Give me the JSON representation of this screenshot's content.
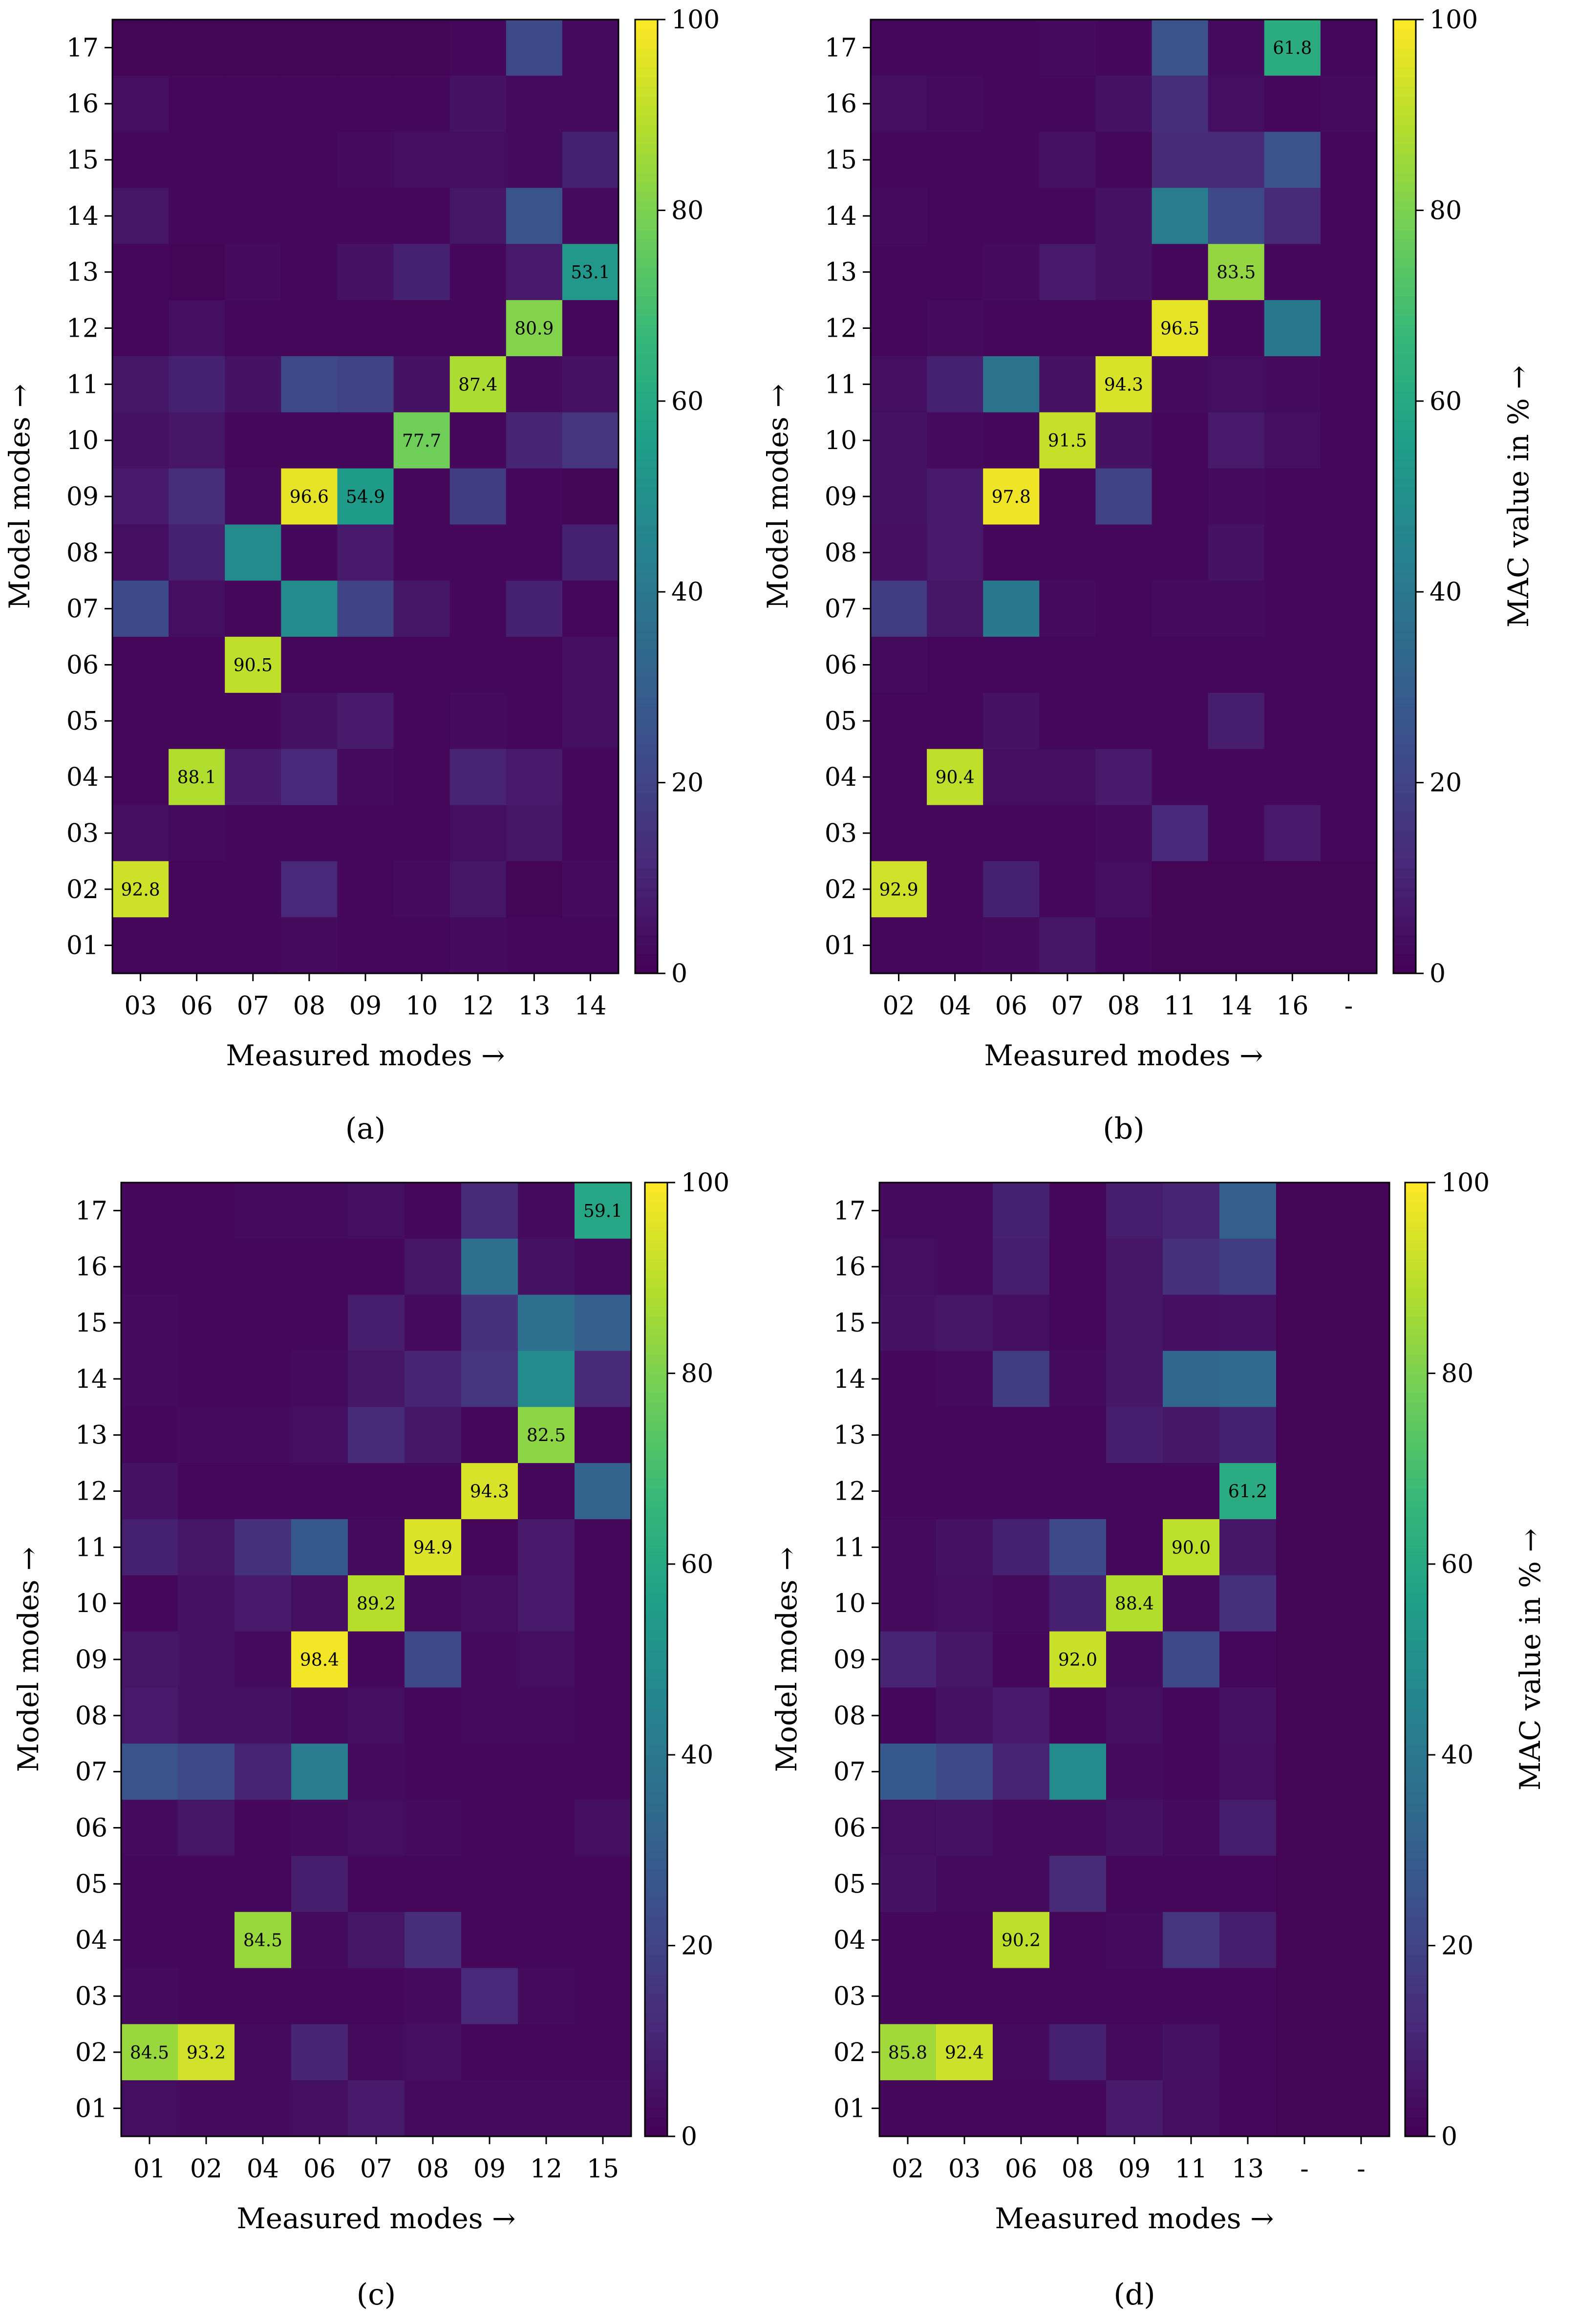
{
  "figure": {
    "colorbar": {
      "ticks": [
        0,
        20,
        40,
        60,
        80,
        100
      ],
      "label": "MAC value in % →",
      "vmin": 0,
      "vmax": 100
    },
    "colormap": [
      "#440154",
      "#482878",
      "#3e4a89",
      "#31688e",
      "#26828e",
      "#1f9e89",
      "#35b779",
      "#6ece58",
      "#b5de2b",
      "#fde725"
    ]
  },
  "chart_data": [
    {
      "type": "heatmap",
      "panel": "a",
      "panel_label": "(a)",
      "xlabel": "Measured modes →",
      "ylabel": "Model modes →",
      "x_categories": [
        "03",
        "06",
        "07",
        "08",
        "09",
        "10",
        "12",
        "13",
        "14"
      ],
      "y_categories": [
        "17",
        "16",
        "15",
        "14",
        "13",
        "12",
        "11",
        "10",
        "09",
        "08",
        "07",
        "06",
        "05",
        "04",
        "03",
        "02",
        "01"
      ],
      "values": [
        [
          1,
          1,
          1,
          1,
          1,
          1,
          2,
          22,
          3
        ],
        [
          4,
          2,
          2,
          2,
          2,
          2,
          5,
          3,
          3
        ],
        [
          2,
          2,
          2,
          2,
          3,
          4,
          4,
          3,
          9
        ],
        [
          6,
          2,
          2,
          2,
          2,
          2,
          6,
          26,
          3
        ],
        [
          2,
          1,
          3,
          2,
          5,
          9,
          2,
          7,
          53.1
        ],
        [
          2,
          4,
          2,
          2,
          2,
          2,
          2,
          80.9,
          2
        ],
        [
          6,
          9,
          5,
          22,
          20,
          5,
          87.4,
          3,
          5
        ],
        [
          5,
          6,
          2,
          2,
          2,
          77.7,
          2,
          10,
          16
        ],
        [
          7,
          13,
          3,
          96.6,
          54.9,
          2,
          18,
          2,
          1
        ],
        [
          4,
          9,
          48,
          2,
          7,
          2,
          2,
          2,
          9
        ],
        [
          22,
          4,
          2,
          48,
          20,
          6,
          2,
          9,
          2
        ],
        [
          2,
          2,
          90.5,
          2,
          2,
          2,
          2,
          2,
          4
        ],
        [
          2,
          2,
          2,
          5,
          7,
          2,
          3,
          2,
          4
        ],
        [
          2,
          88.1,
          7,
          11,
          3,
          2,
          10,
          7,
          2
        ],
        [
          4,
          3,
          2,
          2,
          2,
          2,
          4,
          6,
          2
        ],
        [
          92.8,
          2,
          2,
          11,
          2,
          3,
          6,
          1,
          3
        ],
        [
          2,
          2,
          2,
          3,
          2,
          2,
          3,
          2,
          2
        ]
      ]
    },
    {
      "type": "heatmap",
      "panel": "b",
      "panel_label": "(b)",
      "xlabel": "Measured modes →",
      "ylabel": "Model modes →",
      "x_categories": [
        "02",
        "04",
        "06",
        "07",
        "08",
        "11",
        "14",
        "16",
        "-"
      ],
      "y_categories": [
        "17",
        "16",
        "15",
        "14",
        "13",
        "12",
        "11",
        "10",
        "09",
        "08",
        "07",
        "06",
        "05",
        "04",
        "03",
        "02",
        "01"
      ],
      "values": [
        [
          2,
          2,
          2,
          3,
          2,
          25,
          3,
          61.8,
          2
        ],
        [
          4,
          3,
          2,
          2,
          5,
          13,
          4,
          2,
          3
        ],
        [
          2,
          2,
          2,
          5,
          2,
          12,
          12,
          25,
          2
        ],
        [
          3,
          2,
          2,
          2,
          5,
          42,
          22,
          12,
          2
        ],
        [
          2,
          2,
          3,
          7,
          5,
          2,
          83.5,
          2,
          2
        ],
        [
          2,
          3,
          2,
          2,
          2,
          96.5,
          2,
          40,
          2
        ],
        [
          4,
          9,
          38,
          5,
          94.3,
          3,
          4,
          3,
          2
        ],
        [
          5,
          3,
          2,
          91.5,
          5,
          2,
          7,
          4,
          2
        ],
        [
          5,
          7,
          97.8,
          2,
          20,
          2,
          3,
          2,
          2
        ],
        [
          4,
          7,
          2,
          2,
          2,
          2,
          5,
          2,
          2
        ],
        [
          18,
          6,
          40,
          3,
          2,
          3,
          3,
          2,
          2
        ],
        [
          3,
          2,
          2,
          2,
          2,
          2,
          2,
          2,
          2
        ],
        [
          2,
          2,
          5,
          2,
          2,
          2,
          8,
          2,
          2
        ],
        [
          2,
          90.4,
          4,
          4,
          7,
          2,
          2,
          2,
          2
        ],
        [
          2,
          2,
          2,
          2,
          3,
          11,
          2,
          7,
          2
        ],
        [
          92.9,
          2,
          9,
          2,
          4,
          1,
          1,
          1,
          1
        ],
        [
          2,
          2,
          3,
          6,
          2,
          1,
          1,
          1,
          1
        ]
      ]
    },
    {
      "type": "heatmap",
      "panel": "c",
      "panel_label": "(c)",
      "xlabel": "Measured modes →",
      "ylabel": "Model modes →",
      "x_categories": [
        "01",
        "02",
        "04",
        "06",
        "07",
        "08",
        "09",
        "12",
        "15"
      ],
      "y_categories": [
        "17",
        "16",
        "15",
        "14",
        "13",
        "12",
        "11",
        "10",
        "09",
        "08",
        "07",
        "06",
        "05",
        "04",
        "03",
        "02",
        "01"
      ],
      "values": [
        [
          2,
          2,
          3,
          3,
          4,
          2,
          12,
          3,
          59.1
        ],
        [
          2,
          2,
          2,
          2,
          2,
          6,
          36,
          5,
          3
        ],
        [
          3,
          2,
          2,
          2,
          8,
          3,
          14,
          36,
          30
        ],
        [
          3,
          2,
          2,
          3,
          6,
          10,
          16,
          48,
          12
        ],
        [
          2,
          3,
          3,
          4,
          12,
          6,
          2,
          82.5,
          2
        ],
        [
          5,
          2,
          2,
          2,
          2,
          2,
          94.3,
          2,
          32
        ],
        [
          9,
          6,
          14,
          28,
          3,
          94.9,
          2,
          7,
          2
        ],
        [
          2,
          5,
          7,
          4,
          89.2,
          3,
          4,
          7,
          2
        ],
        [
          6,
          5,
          3,
          98.4,
          2,
          22,
          3,
          4,
          2
        ],
        [
          7,
          5,
          5,
          3,
          4,
          2,
          3,
          3,
          2
        ],
        [
          26,
          22,
          10,
          42,
          3,
          2,
          2,
          2,
          2
        ],
        [
          3,
          6,
          2,
          3,
          4,
          3,
          2,
          2,
          4
        ],
        [
          2,
          2,
          2,
          8,
          2,
          2,
          2,
          2,
          2
        ],
        [
          2,
          2,
          84.5,
          3,
          6,
          13,
          2,
          2,
          2
        ],
        [
          3,
          2,
          2,
          2,
          2,
          3,
          11,
          3,
          2
        ],
        [
          84.5,
          93.2,
          3,
          10,
          3,
          4,
          2,
          2,
          2
        ],
        [
          4,
          3,
          3,
          4,
          7,
          3,
          3,
          3,
          3
        ]
      ]
    },
    {
      "type": "heatmap",
      "panel": "d",
      "panel_label": "(d)",
      "xlabel": "Measured modes →",
      "ylabel": "Model modes →",
      "x_categories": [
        "02",
        "03",
        "06",
        "08",
        "09",
        "11",
        "13",
        "-",
        "-"
      ],
      "y_categories": [
        "17",
        "16",
        "15",
        "14",
        "13",
        "12",
        "11",
        "10",
        "09",
        "08",
        "07",
        "06",
        "05",
        "04",
        "03",
        "02",
        "01"
      ],
      "values": [
        [
          3,
          3,
          9,
          2,
          8,
          10,
          30,
          1,
          1
        ],
        [
          4,
          3,
          8,
          2,
          6,
          14,
          18,
          1,
          1
        ],
        [
          5,
          6,
          4,
          2,
          6,
          4,
          5,
          1,
          1
        ],
        [
          2,
          3,
          18,
          3,
          6,
          33,
          34,
          1,
          1
        ],
        [
          2,
          2,
          2,
          2,
          8,
          6,
          9,
          1,
          1
        ],
        [
          2,
          2,
          2,
          2,
          2,
          2,
          61.2,
          1,
          1
        ],
        [
          3,
          5,
          9,
          22,
          2,
          90.0,
          6,
          1,
          1
        ],
        [
          3,
          4,
          3,
          9,
          88.4,
          3,
          14,
          1,
          1
        ],
        [
          10,
          6,
          2,
          92.0,
          3,
          22,
          2,
          1,
          1
        ],
        [
          2,
          5,
          7,
          2,
          4,
          2,
          5,
          1,
          1
        ],
        [
          28,
          22,
          10,
          48,
          3,
          2,
          4,
          1,
          1
        ],
        [
          4,
          5,
          3,
          3,
          5,
          3,
          8,
          1,
          1
        ],
        [
          5,
          3,
          3,
          12,
          2,
          2,
          2,
          1,
          1
        ],
        [
          2,
          2,
          90.2,
          2,
          3,
          15,
          8,
          1,
          1
        ],
        [
          2,
          2,
          2,
          2,
          2,
          2,
          2,
          1,
          1
        ],
        [
          85.8,
          92.4,
          3,
          9,
          3,
          5,
          2,
          1,
          1
        ],
        [
          2,
          2,
          2,
          2,
          7,
          4,
          2,
          1,
          1
        ]
      ]
    }
  ]
}
